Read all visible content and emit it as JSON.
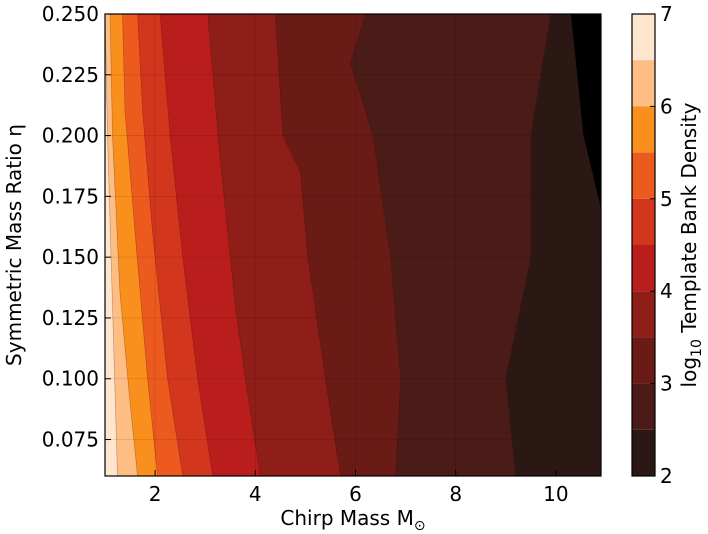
{
  "chart_data": {
    "type": "heatmap",
    "title": "",
    "xlabel": "Chirp Mass M",
    "xlabel_subscript": "⊙",
    "ylabel": "Symmetric Mass Ratio η",
    "colorbar_label": "log",
    "colorbar_label_subscript": "10",
    "colorbar_label_tail": " Template Bank Density",
    "xlim": [
      1.0,
      10.9
    ],
    "ylim": [
      0.06,
      0.25
    ],
    "x_ticks": [
      2,
      4,
      6,
      8,
      10
    ],
    "x_tick_labels": [
      "2",
      "4",
      "6",
      "8",
      "10"
    ],
    "y_ticks": [
      0.075,
      0.1,
      0.125,
      0.15,
      0.175,
      0.2,
      0.225,
      0.25
    ],
    "y_tick_labels": [
      "0.075",
      "0.100",
      "0.125",
      "0.150",
      "0.175",
      "0.200",
      "0.225",
      "0.250"
    ],
    "colorbar_ticks": [
      2,
      3,
      4,
      5,
      6,
      7
    ],
    "colorbar_tick_labels": [
      "2",
      "3",
      "4",
      "5",
      "6",
      "7"
    ],
    "colorbar_range": [
      2,
      7
    ],
    "colormap": "gist_heat",
    "grid": true,
    "levels": [
      {
        "from": 6.5,
        "to": 7.0,
        "color": "#fde6cd"
      },
      {
        "from": 6.0,
        "to": 6.5,
        "color": "#fdbd83"
      },
      {
        "from": 5.5,
        "to": 6.0,
        "color": "#f98f1c"
      },
      {
        "from": 5.0,
        "to": 5.5,
        "color": "#ec5a1e"
      },
      {
        "from": 4.5,
        "to": 5.0,
        "color": "#d2361d"
      },
      {
        "from": 4.0,
        "to": 4.5,
        "color": "#ba1e1c"
      },
      {
        "from": 3.5,
        "to": 4.0,
        "color": "#8f1d18"
      },
      {
        "from": 3.0,
        "to": 3.5,
        "color": "#6b1b16"
      },
      {
        "from": 2.5,
        "to": 3.0,
        "color": "#4a1b17"
      },
      {
        "from": 2.0,
        "to": 2.5,
        "color": "#2b1815"
      }
    ],
    "contour_bands": [
      {
        "level": 7.0,
        "boundary": [
          [
            1.0,
            0.06
          ],
          [
            1.0,
            0.25
          ]
        ]
      },
      {
        "level": 6.5,
        "boundary": [
          [
            1.25,
            0.06
          ],
          [
            1.05,
            0.2
          ],
          [
            1.0,
            0.25
          ]
        ]
      },
      {
        "level": 6.0,
        "boundary": [
          [
            1.65,
            0.06
          ],
          [
            1.5,
            0.09
          ],
          [
            1.3,
            0.135
          ],
          [
            1.15,
            0.2
          ],
          [
            1.1,
            0.25
          ]
        ]
      },
      {
        "level": 5.5,
        "boundary": [
          [
            2.05,
            0.06
          ],
          [
            1.85,
            0.1
          ],
          [
            1.6,
            0.16
          ],
          [
            1.4,
            0.21
          ],
          [
            1.35,
            0.25
          ]
        ]
      },
      {
        "level": 5.0,
        "boundary": [
          [
            2.55,
            0.06
          ],
          [
            2.25,
            0.1
          ],
          [
            1.95,
            0.16
          ],
          [
            1.75,
            0.21
          ],
          [
            1.65,
            0.25
          ]
        ]
      },
      {
        "level": 4.5,
        "boundary": [
          [
            3.15,
            0.06
          ],
          [
            2.85,
            0.1
          ],
          [
            2.55,
            0.15
          ],
          [
            2.3,
            0.2
          ],
          [
            2.1,
            0.25
          ]
        ]
      },
      {
        "level": 4.0,
        "boundary": [
          [
            4.1,
            0.06
          ],
          [
            3.8,
            0.1
          ],
          [
            3.6,
            0.13
          ],
          [
            3.3,
            0.19
          ],
          [
            3.05,
            0.25
          ]
        ]
      },
      {
        "level": 3.5,
        "boundary": [
          [
            5.7,
            0.06
          ],
          [
            5.4,
            0.1
          ],
          [
            5.05,
            0.15
          ],
          [
            4.9,
            0.185
          ],
          [
            4.55,
            0.2
          ],
          [
            4.4,
            0.25
          ]
        ]
      },
      {
        "level": 3.0,
        "boundary": [
          [
            6.8,
            0.06
          ],
          [
            6.9,
            0.1
          ],
          [
            6.7,
            0.15
          ],
          [
            6.35,
            0.2
          ],
          [
            5.9,
            0.23
          ],
          [
            6.2,
            0.25
          ]
        ]
      },
      {
        "level": 2.5,
        "boundary": [
          [
            9.2,
            0.06
          ],
          [
            9.0,
            0.1
          ],
          [
            9.5,
            0.15
          ],
          [
            9.5,
            0.2
          ],
          [
            9.9,
            0.25
          ]
        ]
      }
    ],
    "dark_patch": {
      "level": 2.0,
      "boundary": [
        [
          10.9,
          0.17
        ],
        [
          10.55,
          0.2
        ],
        [
          10.3,
          0.25
        ],
        [
          10.9,
          0.25
        ]
      ]
    }
  }
}
